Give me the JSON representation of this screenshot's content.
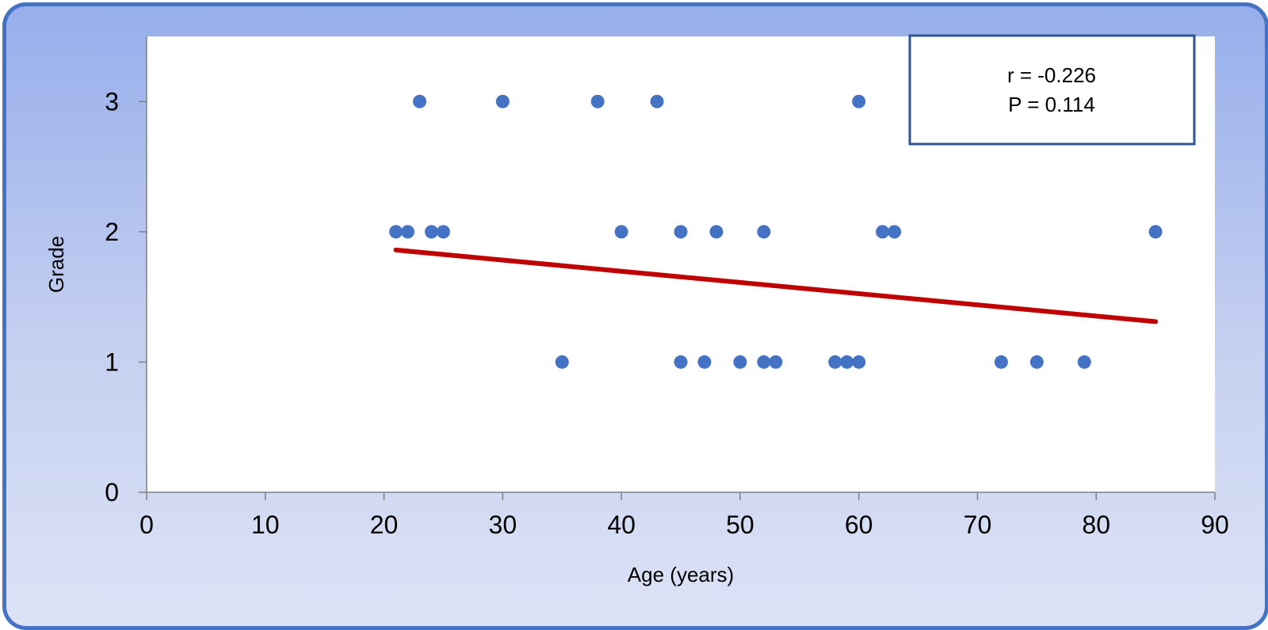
{
  "chart_data": {
    "type": "scatter",
    "title": "",
    "xlabel": "Age (years)",
    "ylabel": "Grade",
    "xlim": [
      0,
      90
    ],
    "ylim": [
      0,
      3.5
    ],
    "xticks": [
      0,
      10,
      20,
      30,
      40,
      50,
      60,
      70,
      80,
      90
    ],
    "yticks": [
      0,
      1,
      2,
      3
    ],
    "grid": false,
    "legend": "none",
    "colors": {
      "points": "#4472c4",
      "trendline": "#c00000",
      "annotation_border": "#2f5597"
    },
    "series": [
      {
        "points": [
          [
            21,
            2
          ],
          [
            22,
            2
          ],
          [
            23,
            3
          ],
          [
            24,
            2
          ],
          [
            25,
            2
          ],
          [
            30,
            3
          ],
          [
            35,
            1
          ],
          [
            38,
            3
          ],
          [
            40,
            2
          ],
          [
            43,
            3
          ],
          [
            45,
            2
          ],
          [
            45,
            1
          ],
          [
            47,
            1
          ],
          [
            48,
            2
          ],
          [
            50,
            1
          ],
          [
            52,
            2
          ],
          [
            52,
            1
          ],
          [
            53,
            1
          ],
          [
            58,
            1
          ],
          [
            59,
            1
          ],
          [
            60,
            3
          ],
          [
            60,
            1
          ],
          [
            62,
            2
          ],
          [
            63,
            2
          ],
          [
            72,
            1
          ],
          [
            75,
            1
          ],
          [
            79,
            1
          ],
          [
            85,
            2
          ]
        ]
      }
    ],
    "trendline": {
      "x": [
        21,
        85
      ],
      "y": [
        1.86,
        1.31
      ]
    },
    "annotation": {
      "lines": [
        "r = -0.226",
        "P = 0.114"
      ],
      "position": "top-right"
    }
  }
}
